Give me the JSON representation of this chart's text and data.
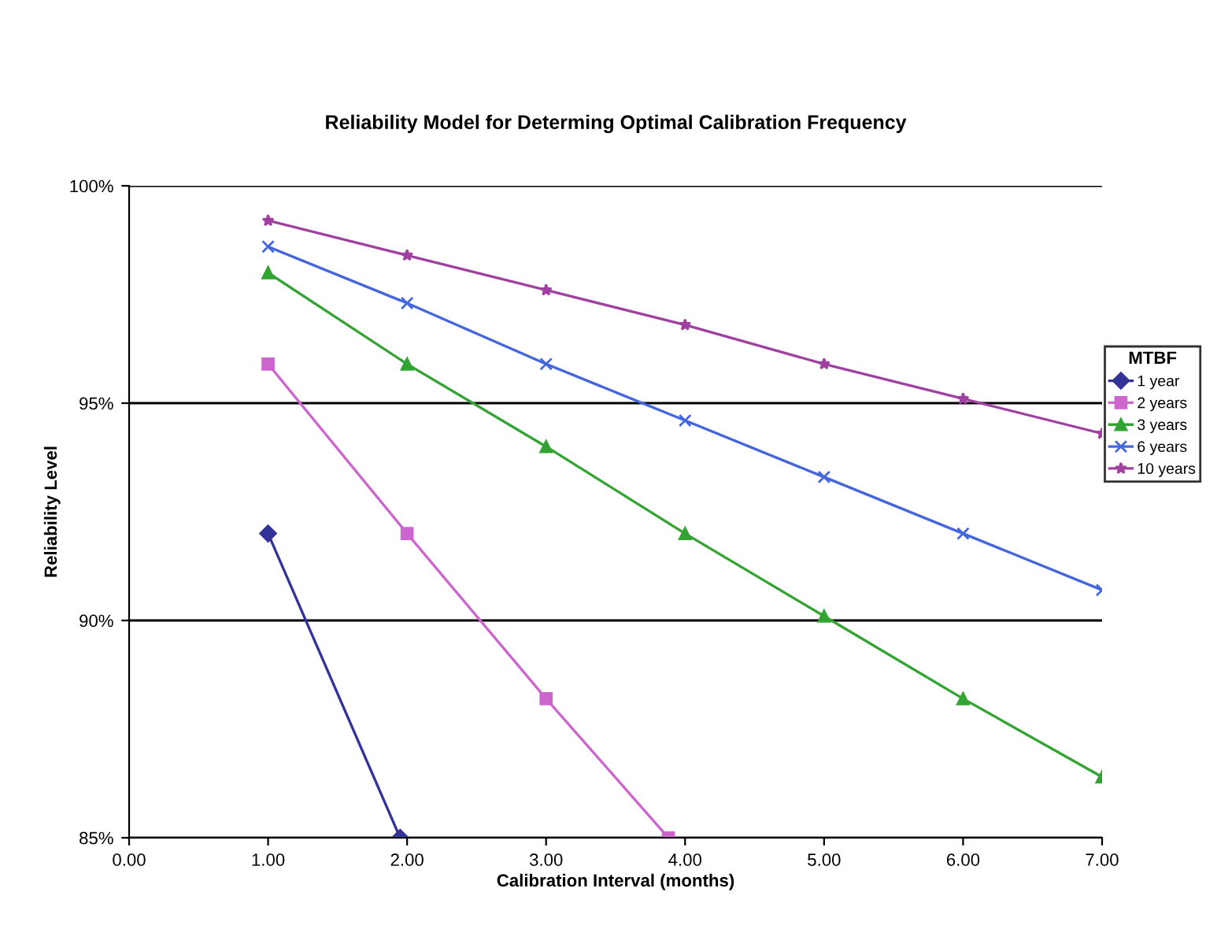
{
  "chart_data": {
    "type": "line",
    "title": "Reliability Model for Determing Optimal Calibration Frequency",
    "xlabel": "Calibration Interval (months)",
    "ylabel": "Reliability Level",
    "legend_title": "MTBF",
    "legend": "right",
    "series": [
      {
        "name": "1 year",
        "color": "#333399",
        "marker": "diamond",
        "x": [
          1,
          1.95
        ],
        "values": [
          92.0,
          85.0
        ]
      },
      {
        "name": "2 years",
        "color": "#cc66cc",
        "marker": "square",
        "x": [
          1,
          2,
          3,
          3.88
        ],
        "values": [
          95.9,
          92.0,
          88.2,
          85.0
        ]
      },
      {
        "name": "3 years",
        "color": "#33a333",
        "marker": "triangle",
        "x": [
          1,
          2,
          3,
          4,
          5,
          6,
          7
        ],
        "values": [
          98.0,
          95.9,
          94.0,
          92.0,
          90.1,
          88.2,
          86.4
        ]
      },
      {
        "name": "6 years",
        "color": "#4466dd",
        "marker": "cross",
        "x": [
          1,
          2,
          3,
          4,
          5,
          6,
          7
        ],
        "values": [
          98.6,
          97.3,
          95.9,
          94.6,
          93.3,
          92.0,
          90.7
        ]
      },
      {
        "name": "10 years",
        "color": "#a040a0",
        "marker": "star",
        "x": [
          1,
          2,
          3,
          4,
          5,
          6,
          7
        ],
        "values": [
          99.2,
          98.4,
          97.6,
          96.8,
          95.9,
          95.1,
          94.3
        ]
      }
    ],
    "xlim": [
      0,
      7
    ],
    "xticks": [
      {
        "value": 0,
        "label": "0.00"
      },
      {
        "value": 1,
        "label": "1.00"
      },
      {
        "value": 2,
        "label": "2.00"
      },
      {
        "value": 3,
        "label": "3.00"
      },
      {
        "value": 4,
        "label": "4.00"
      },
      {
        "value": 5,
        "label": "5.00"
      },
      {
        "value": 6,
        "label": "6.00"
      },
      {
        "value": 7,
        "label": "7.00"
      }
    ],
    "ylim": [
      85,
      100
    ],
    "yticks": [
      {
        "value": 85,
        "label": "85%"
      },
      {
        "value": 90,
        "label": "90%"
      },
      {
        "value": 95,
        "label": "95%"
      },
      {
        "value": 100,
        "label": "100%"
      }
    ],
    "grid": "y"
  }
}
